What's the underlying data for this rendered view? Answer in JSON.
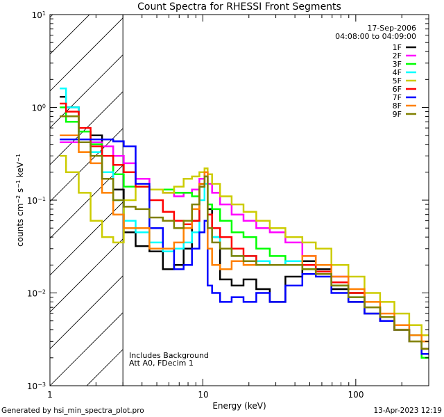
{
  "chart_data": {
    "type": "line",
    "title": "Count Spectra for RHESSI Front Segments",
    "xlabel": "Energy (keV)",
    "ylabel": "counts cm^-2 s^-1 keV^-1",
    "xscale": "log",
    "yscale": "log",
    "xlim": [
      1,
      300
    ],
    "ylim": [
      0.001,
      10
    ],
    "x_tick_labels": [
      "1",
      "10",
      "100"
    ],
    "y_tick_labels": [
      {
        "base": "10",
        "exp": "1",
        "value": 10
      },
      {
        "base": "10",
        "exp": "0",
        "value": 1
      },
      {
        "base": "10",
        "exp": "−1",
        "value": 0.1
      },
      {
        "base": "10",
        "exp": "−2",
        "value": 0.01
      },
      {
        "base": "10",
        "exp": "−3",
        "value": 0.001
      }
    ],
    "grid": false,
    "legend_position": "top-right",
    "shaded_region": {
      "from": 1,
      "to": 3,
      "pattern": "diagonal-hatch"
    },
    "annotations": {
      "date": "17-Sep-2006",
      "time_range": "04:08:00 to 04:09:00",
      "note1": "Includes Background",
      "note2": "Att A0, FDecim 1"
    },
    "x": [
      1.16,
      1.4,
      1.7,
      2.0,
      2.4,
      2.8,
      3.3,
      4.0,
      5.0,
      6.0,
      7.0,
      8.0,
      9.0,
      10.0,
      10.5,
      11.0,
      12.0,
      14.0,
      17.0,
      20.0,
      25.0,
      30.0,
      40.0,
      50.0,
      60.0,
      80.0,
      100.0,
      130.0,
      160.0,
      200.0,
      250.0,
      290.0
    ],
    "series": [
      {
        "name": "1F",
        "color": "#000000",
        "values": [
          1.3,
          1.0,
          0.55,
          0.5,
          0.3,
          0.13,
          0.045,
          0.032,
          0.028,
          0.018,
          0.02,
          0.03,
          0.06,
          0.15,
          0.2,
          0.08,
          0.04,
          0.014,
          0.012,
          0.014,
          0.011,
          0.008,
          0.015,
          0.022,
          0.018,
          0.011,
          0.008,
          0.006,
          0.005,
          0.004,
          0.003,
          0.0025
        ]
      },
      {
        "name": "2F",
        "color": "#ff00ff",
        "values": [
          0.42,
          0.42,
          0.42,
          0.42,
          0.38,
          0.3,
          0.25,
          0.17,
          0.13,
          0.12,
          0.11,
          0.12,
          0.13,
          0.17,
          0.2,
          0.15,
          0.12,
          0.09,
          0.07,
          0.06,
          0.05,
          0.045,
          0.035,
          0.025,
          0.02,
          0.015,
          0.01,
          0.007,
          0.005,
          0.004,
          0.003,
          0.0025
        ]
      },
      {
        "name": "3F",
        "color": "#00ff00",
        "values": [
          1.0,
          0.7,
          0.55,
          0.4,
          0.3,
          0.19,
          0.14,
          0.14,
          0.13,
          0.13,
          0.12,
          0.12,
          0.11,
          0.14,
          0.18,
          0.09,
          0.08,
          0.06,
          0.045,
          0.04,
          0.03,
          0.025,
          0.02,
          0.018,
          0.016,
          0.012,
          0.01,
          0.007,
          0.005,
          0.004,
          0.003,
          0.002
        ]
      },
      {
        "name": "4F",
        "color": "#00ffff",
        "values": [
          1.6,
          1.0,
          0.45,
          0.33,
          0.2,
          0.1,
          0.06,
          0.045,
          0.035,
          0.028,
          0.03,
          0.035,
          0.045,
          0.1,
          0.15,
          0.05,
          0.04,
          0.03,
          0.025,
          0.025,
          0.022,
          0.02,
          0.022,
          0.02,
          0.017,
          0.013,
          0.009,
          0.007,
          0.005,
          0.0045,
          0.0035,
          0.003
        ]
      },
      {
        "name": "5F",
        "color": "#cccc00",
        "values": [
          0.3,
          0.2,
          0.12,
          0.06,
          0.04,
          0.035,
          0.1,
          0.14,
          0.13,
          0.12,
          0.14,
          0.17,
          0.18,
          0.2,
          0.22,
          0.19,
          0.15,
          0.11,
          0.09,
          0.075,
          0.06,
          0.05,
          0.04,
          0.035,
          0.03,
          0.02,
          0.015,
          0.01,
          0.008,
          0.006,
          0.0045,
          0.0035
        ]
      },
      {
        "name": "6F",
        "color": "#ff0000",
        "values": [
          1.1,
          0.9,
          0.6,
          0.38,
          0.3,
          0.24,
          0.2,
          0.14,
          0.1,
          0.075,
          0.06,
          0.055,
          0.06,
          0.14,
          0.2,
          0.07,
          0.05,
          0.04,
          0.03,
          0.025,
          0.02,
          0.02,
          0.02,
          0.02,
          0.017,
          0.013,
          0.01,
          0.007,
          0.005,
          0.004,
          0.003,
          0.0025
        ]
      },
      {
        "name": "7F",
        "color": "#0000ff",
        "values": [
          0.45,
          0.45,
          0.45,
          0.45,
          0.45,
          0.43,
          0.38,
          0.15,
          0.05,
          0.03,
          0.018,
          0.02,
          0.03,
          0.045,
          0.06,
          0.012,
          0.01,
          0.008,
          0.009,
          0.008,
          0.01,
          0.008,
          0.012,
          0.016,
          0.015,
          0.01,
          0.008,
          0.006,
          0.005,
          0.004,
          0.003,
          0.0022
        ]
      },
      {
        "name": "8F",
        "color": "#ff8000",
        "values": [
          0.5,
          0.5,
          0.33,
          0.25,
          0.12,
          0.07,
          0.05,
          0.05,
          0.03,
          0.03,
          0.035,
          0.05,
          0.08,
          0.15,
          0.2,
          0.03,
          0.02,
          0.018,
          0.022,
          0.02,
          0.02,
          0.02,
          0.02,
          0.025,
          0.02,
          0.015,
          0.011,
          0.008,
          0.006,
          0.0045,
          0.0035,
          0.003
        ]
      },
      {
        "name": "9F",
        "color": "#808000",
        "values": [
          0.8,
          0.8,
          0.42,
          0.3,
          0.17,
          0.1,
          0.085,
          0.08,
          0.065,
          0.06,
          0.05,
          0.06,
          0.09,
          0.14,
          0.18,
          0.05,
          0.035,
          0.03,
          0.025,
          0.022,
          0.02,
          0.02,
          0.02,
          0.018,
          0.016,
          0.012,
          0.009,
          0.007,
          0.0055,
          0.004,
          0.003,
          0.0025
        ]
      }
    ]
  },
  "footer": {
    "generated_by": "Generated by hsi_min_spectra_plot.pro",
    "timestamp": "13-Apr-2023 12:19"
  }
}
